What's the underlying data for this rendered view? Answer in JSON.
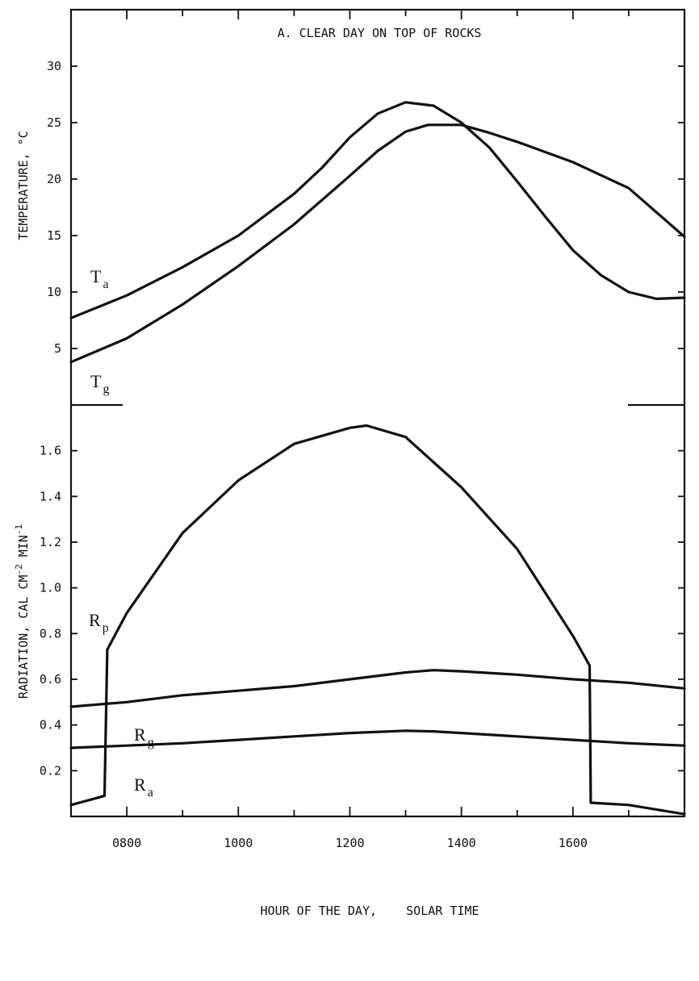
{
  "chart_data": [
    {
      "type": "line",
      "title": "A. CLEAR DAY ON TOP OF ROCKS",
      "ylabel": "TEMPERATURE, °C",
      "xlim": [
        700,
        1800
      ],
      "ylim": [
        0,
        35
      ],
      "yticks": [
        5,
        10,
        15,
        20,
        25,
        30
      ],
      "grid": false,
      "series": [
        {
          "name": "T_a",
          "label_main": "T",
          "label_sub": "a",
          "x": [
            700,
            800,
            900,
            1000,
            1100,
            1150,
            1200,
            1250,
            1300,
            1350,
            1400,
            1450,
            1500,
            1550,
            1600,
            1650,
            1700,
            1750,
            1800
          ],
          "y": [
            7.7,
            9.7,
            12.2,
            15.0,
            18.7,
            21.0,
            23.7,
            25.8,
            26.8,
            26.5,
            25.0,
            22.8,
            19.8,
            16.7,
            13.7,
            11.5,
            10.0,
            9.4,
            9.5
          ]
        },
        {
          "name": "T_g",
          "label_main": "T",
          "label_sub": "g",
          "x": [
            700,
            800,
            900,
            1000,
            1100,
            1200,
            1250,
            1300,
            1340,
            1400,
            1450,
            1500,
            1600,
            1700,
            1800
          ],
          "y": [
            3.8,
            5.9,
            8.9,
            12.3,
            16.0,
            20.3,
            22.5,
            24.2,
            24.8,
            24.8,
            24.1,
            23.3,
            21.5,
            19.2,
            14.9
          ]
        }
      ]
    },
    {
      "type": "line",
      "xlabel": "HOUR OF THE DAY,    SOLAR TIME",
      "ylabel": "RADIATION, CAL CM",
      "ylabel_sup1": "-2",
      "ylabel_mid": " MIN",
      "ylabel_sup2": "-1",
      "xlim": [
        700,
        1800
      ],
      "ylim": [
        0,
        1.8
      ],
      "xticks": [
        800,
        1000,
        1200,
        1400,
        1600
      ],
      "yticks": [
        "0.2",
        "0.4",
        "0.6",
        "0.8",
        "1.0",
        "1.2",
        "1.4",
        "1.6"
      ],
      "grid": false,
      "series": [
        {
          "name": "R_p",
          "label_main": "R",
          "label_sub": "p",
          "x": [
            700,
            760,
            765,
            800,
            900,
            1000,
            1100,
            1200,
            1230,
            1300,
            1400,
            1500,
            1600,
            1630,
            1632,
            1700,
            1800
          ],
          "y": [
            0.05,
            0.09,
            0.73,
            0.89,
            1.24,
            1.47,
            1.63,
            1.7,
            1.71,
            1.66,
            1.44,
            1.17,
            0.79,
            0.66,
            0.06,
            0.05,
            0.01
          ]
        },
        {
          "name": "R_g",
          "label_main": "R",
          "label_sub": "g",
          "x": [
            700,
            800,
            900,
            1000,
            1100,
            1200,
            1300,
            1350,
            1400,
            1500,
            1600,
            1700,
            1800
          ],
          "y": [
            0.48,
            0.5,
            0.53,
            0.55,
            0.57,
            0.6,
            0.63,
            0.64,
            0.635,
            0.62,
            0.6,
            0.585,
            0.56
          ]
        },
        {
          "name": "R_a",
          "label_main": "R",
          "label_sub": "a",
          "x": [
            700,
            800,
            900,
            1000,
            1100,
            1200,
            1300,
            1350,
            1400,
            1500,
            1600,
            1700,
            1800
          ],
          "y": [
            0.3,
            0.31,
            0.32,
            0.335,
            0.35,
            0.365,
            0.375,
            0.372,
            0.365,
            0.35,
            0.335,
            0.32,
            0.31
          ]
        }
      ]
    }
  ]
}
